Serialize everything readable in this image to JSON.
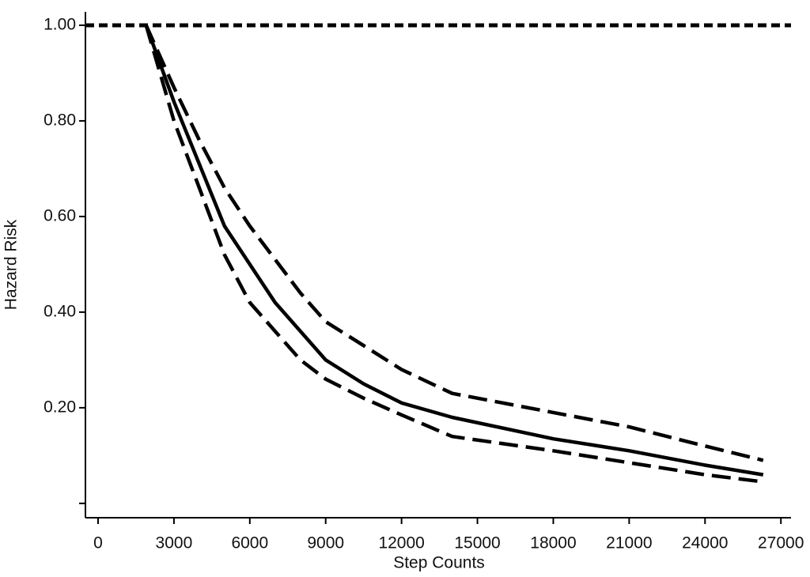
{
  "chart_data": {
    "type": "line",
    "xlabel": "Step Counts",
    "ylabel": "Hazard Risk",
    "xlim": [
      -500,
      27400
    ],
    "ylim": [
      -0.03,
      1.028
    ],
    "xticks": [
      0,
      3000,
      6000,
      9000,
      12000,
      15000,
      18000,
      21000,
      24000,
      27000
    ],
    "yticks": [
      {
        "value": 0,
        "label": null
      },
      {
        "value": 0.2,
        "label": "0.20"
      },
      {
        "value": 0.4,
        "label": "0.40"
      },
      {
        "value": 0.6,
        "label": "0.60"
      },
      {
        "value": 0.8,
        "label": "0.80"
      },
      {
        "value": 1,
        "label": "1.00"
      }
    ],
    "hlines": [
      1
    ],
    "x": [
      1900,
      3000,
      4000,
      5000,
      6000,
      7000,
      8000,
      9000,
      10500,
      12000,
      14000,
      18000,
      21000,
      24000,
      26300
    ],
    "series": [
      {
        "color": "#000000",
        "style": "solid",
        "values": [
          1.0,
          0.84,
          0.71,
          0.58,
          0.5,
          0.42,
          0.36,
          0.3,
          0.25,
          0.21,
          0.18,
          0.135,
          0.11,
          0.08,
          0.06
        ]
      },
      {
        "color": "#000000",
        "style": "dashed",
        "values": [
          1.0,
          0.87,
          0.76,
          0.66,
          0.58,
          0.51,
          0.44,
          0.38,
          0.33,
          0.28,
          0.23,
          0.19,
          0.16,
          0.12,
          0.09
        ]
      },
      {
        "color": "#000000",
        "style": "dashed",
        "values": [
          1.0,
          0.8,
          0.66,
          0.52,
          0.42,
          0.36,
          0.3,
          0.26,
          0.22,
          0.185,
          0.14,
          0.11,
          0.085,
          0.06,
          0.045
        ]
      }
    ]
  }
}
